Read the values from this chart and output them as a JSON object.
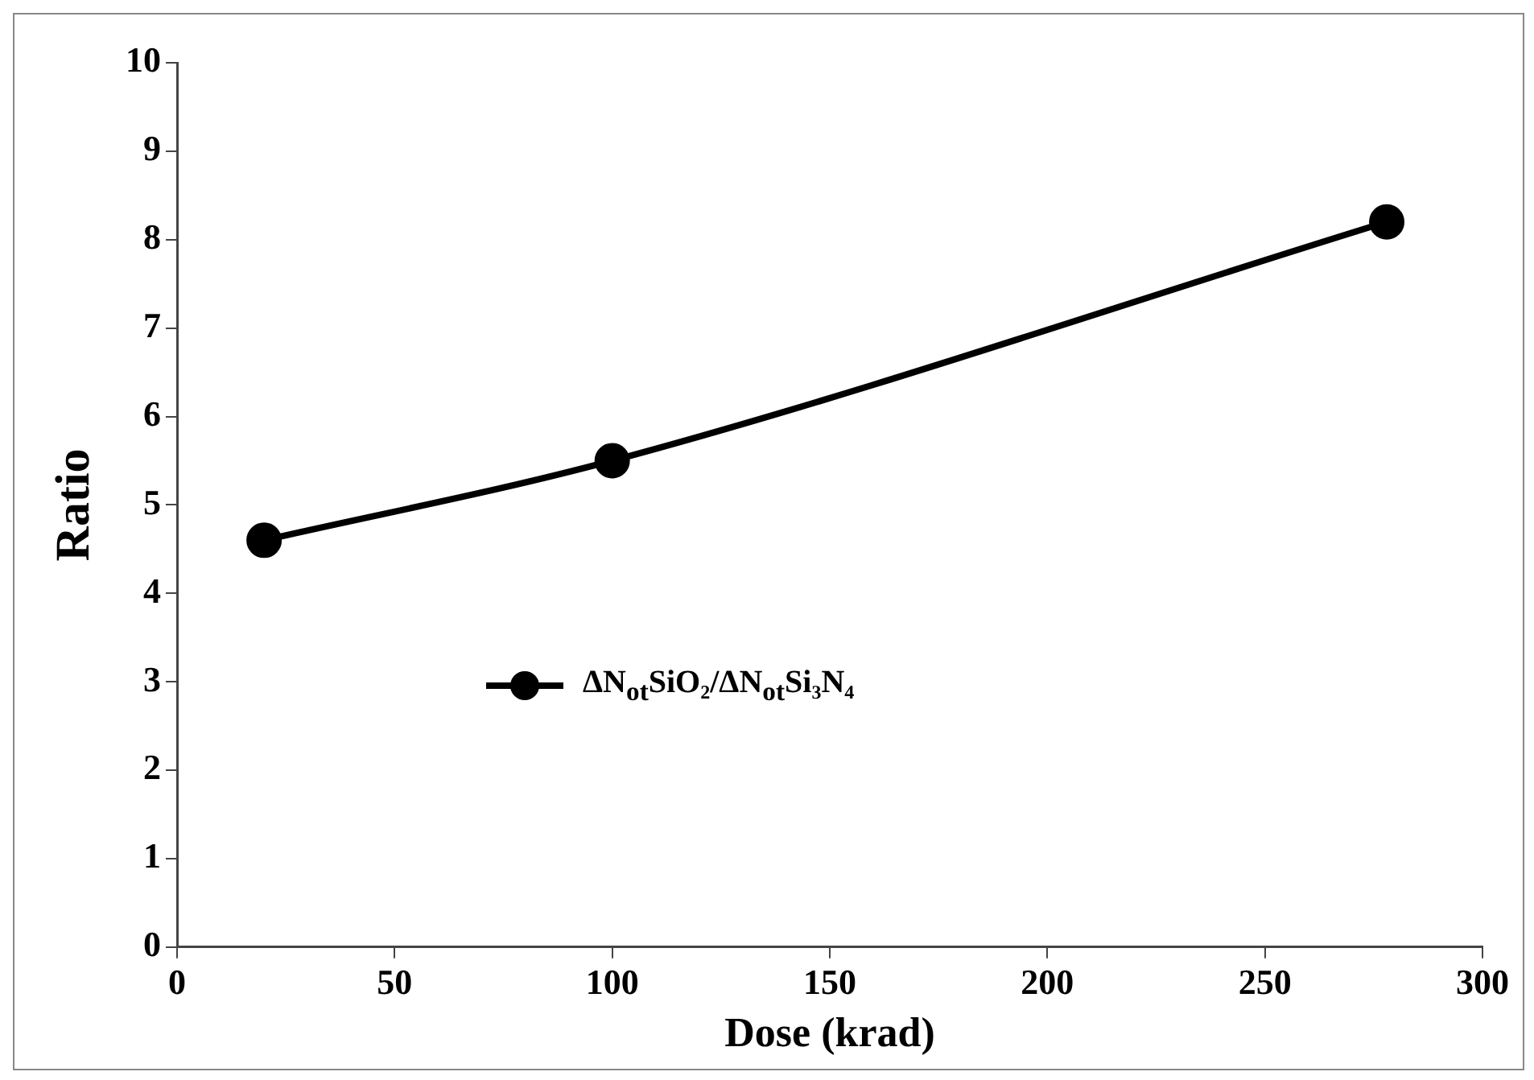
{
  "chart_data": {
    "type": "line",
    "xlabel": "Dose (krad)",
    "ylabel": "Ratio",
    "x": [
      20,
      100,
      278
    ],
    "series": [
      {
        "name": "ΔN$_{ot}$SiO₂/ΔN$_{ot}$Si₃N₄",
        "color": "#000000",
        "values": [
          4.6,
          5.5,
          8.2
        ]
      }
    ],
    "xlim": [
      0,
      300
    ],
    "xticks": [
      0,
      50,
      100,
      150,
      200,
      250,
      300
    ],
    "ylim": [
      0,
      10
    ],
    "yticks": [
      0,
      1,
      2,
      3,
      4,
      5,
      6,
      7,
      8,
      9,
      10
    ],
    "grid": false,
    "legend": "left",
    "marker": "circle",
    "line_style": "solid"
  }
}
